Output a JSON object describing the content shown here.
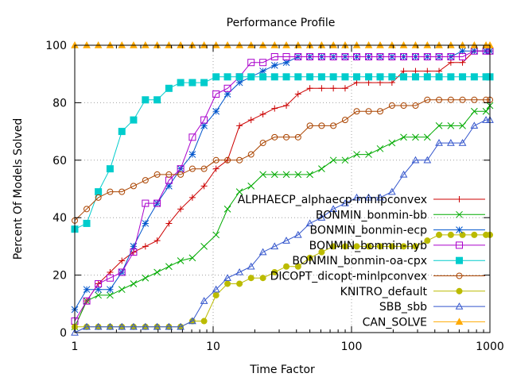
{
  "chart_data": {
    "type": "line",
    "title": "Performance Profile",
    "xlabel": "Time Factor",
    "ylabel": "Percent Of Models Solved",
    "x_scale": "log",
    "xlim": [
      1,
      1000
    ],
    "ylim": [
      0,
      100
    ],
    "xticks": [
      1,
      10,
      100,
      1000
    ],
    "yticks": [
      0,
      20,
      40,
      60,
      80,
      100
    ],
    "grid": true,
    "legend_position": "right",
    "series": [
      {
        "name": "ALPHAECP_alphaecp-minlpconvex",
        "color": "#cc0000",
        "marker": "plus",
        "x": [
          1,
          1.22,
          1.48,
          1.8,
          2.19,
          2.66,
          3.24,
          3.94,
          4.79,
          5.82,
          7.08,
          8.6,
          10.5,
          12.7,
          15.5,
          18.8,
          22.9,
          27.8,
          33.8,
          41.1,
          50,
          60.8,
          73.9,
          89.9,
          109,
          133,
          161,
          196,
          238,
          290,
          353,
          429,
          522,
          634,
          771,
          937,
          1000
        ],
        "y": [
          2,
          11,
          17,
          21,
          25,
          28,
          30,
          32,
          38,
          43,
          47,
          51,
          57,
          60,
          72,
          74,
          76,
          78,
          79,
          83,
          85,
          85,
          85,
          85,
          87,
          87,
          87,
          87,
          91,
          91,
          91,
          91,
          94,
          94,
          98,
          98,
          98
        ]
      },
      {
        "name": "BONMIN_bonmin-bb",
        "color": "#00aa00",
        "marker": "x",
        "x": [
          1,
          1.22,
          1.48,
          1.8,
          2.19,
          2.66,
          3.24,
          3.94,
          4.79,
          5.82,
          7.08,
          8.6,
          10.5,
          12.7,
          15.5,
          18.8,
          22.9,
          27.8,
          33.8,
          41.1,
          50,
          60.8,
          73.9,
          89.9,
          109,
          133,
          161,
          196,
          238,
          290,
          353,
          429,
          522,
          634,
          771,
          937,
          1000
        ],
        "y": [
          2,
          11,
          13,
          13,
          15,
          17,
          19,
          21,
          23,
          25,
          26,
          30,
          34,
          43,
          49,
          51,
          55,
          55,
          55,
          55,
          55,
          57,
          60,
          60,
          62,
          62,
          64,
          66,
          68,
          68,
          68,
          72,
          72,
          72,
          77,
          77,
          79
        ]
      },
      {
        "name": "BONMIN_bonmin-ecp",
        "color": "#0055cc",
        "marker": "star",
        "x": [
          1,
          1.22,
          1.48,
          1.8,
          2.19,
          2.66,
          3.24,
          3.94,
          4.79,
          5.82,
          7.08,
          8.6,
          10.5,
          12.7,
          15.5,
          18.8,
          22.9,
          27.8,
          33.8,
          41.1,
          50,
          60.8,
          73.9,
          89.9,
          109,
          133,
          161,
          196,
          238,
          290,
          353,
          429,
          522,
          634,
          771,
          937,
          1000
        ],
        "y": [
          8,
          15,
          15,
          15,
          21,
          30,
          38,
          45,
          51,
          57,
          62,
          72,
          77,
          83,
          87,
          89,
          91,
          93,
          94,
          96,
          96,
          96,
          96,
          96,
          96,
          96,
          96,
          96,
          96,
          96,
          96,
          96,
          96,
          98,
          98,
          98,
          98
        ]
      },
      {
        "name": "BONMIN_bonmin-hyb",
        "color": "#aa00cc",
        "marker": "square",
        "x": [
          1,
          1.22,
          1.48,
          1.8,
          2.19,
          2.66,
          3.24,
          3.94,
          4.79,
          5.82,
          7.08,
          8.6,
          10.5,
          12.7,
          15.5,
          18.8,
          22.9,
          27.8,
          33.8,
          41.1,
          50,
          60.8,
          73.9,
          89.9,
          109,
          133,
          161,
          196,
          238,
          290,
          353,
          429,
          522,
          634,
          771,
          937,
          1000
        ],
        "y": [
          4,
          11,
          17,
          19,
          21,
          28,
          45,
          45,
          53,
          57,
          68,
          74,
          83,
          85,
          89,
          94,
          94,
          96,
          96,
          96,
          96,
          96,
          96,
          96,
          96,
          96,
          96,
          96,
          96,
          96,
          96,
          96,
          96,
          96,
          98,
          98,
          98
        ]
      },
      {
        "name": "BONMIN_bonmin-oa-cpx",
        "color": "#00cccc",
        "marker": "filled-square",
        "x": [
          1,
          1.22,
          1.48,
          1.8,
          2.19,
          2.66,
          3.24,
          3.94,
          4.79,
          5.82,
          7.08,
          8.6,
          10.5,
          12.7,
          15.5,
          18.8,
          22.9,
          27.8,
          33.8,
          41.1,
          50,
          60.8,
          73.9,
          89.9,
          109,
          133,
          161,
          196,
          238,
          290,
          353,
          429,
          522,
          634,
          771,
          937,
          1000
        ],
        "y": [
          36,
          38,
          49,
          57,
          70,
          74,
          81,
          81,
          85,
          87,
          87,
          87,
          89,
          89,
          89,
          89,
          89,
          89,
          89,
          89,
          89,
          89,
          89,
          89,
          89,
          89,
          89,
          89,
          89,
          89,
          89,
          89,
          89,
          89,
          89,
          89,
          89
        ]
      },
      {
        "name": "DICOPT_dicopt-minlpconvex",
        "color": "#aa4400",
        "marker": "circle",
        "x": [
          1,
          1.22,
          1.48,
          1.8,
          2.19,
          2.66,
          3.24,
          3.94,
          4.79,
          5.82,
          7.08,
          8.6,
          10.5,
          12.7,
          15.5,
          18.8,
          22.9,
          27.8,
          33.8,
          41.1,
          50,
          60.8,
          73.9,
          89.9,
          109,
          133,
          161,
          196,
          238,
          290,
          353,
          429,
          522,
          634,
          771,
          937,
          1000
        ],
        "y": [
          39,
          43,
          47,
          49,
          49,
          51,
          53,
          55,
          55,
          55,
          57,
          57,
          60,
          60,
          60,
          62,
          66,
          68,
          68,
          68,
          72,
          72,
          72,
          74,
          77,
          77,
          77,
          79,
          79,
          79,
          81,
          81,
          81,
          81,
          81,
          81,
          81
        ]
      },
      {
        "name": "KNITRO_default",
        "color": "#bbbb00",
        "marker": "filled-circle",
        "x": [
          1,
          1.22,
          1.48,
          1.8,
          2.19,
          2.66,
          3.24,
          3.94,
          4.79,
          5.82,
          7.08,
          8.6,
          10.5,
          12.7,
          15.5,
          18.8,
          22.9,
          27.8,
          33.8,
          41.1,
          50,
          60.8,
          73.9,
          89.9,
          109,
          133,
          161,
          196,
          238,
          290,
          353,
          429,
          522,
          634,
          771,
          937,
          1000
        ],
        "y": [
          2,
          2,
          2,
          2,
          2,
          2,
          2,
          2,
          2,
          2,
          4,
          4,
          13,
          17,
          17,
          19,
          19,
          21,
          23,
          23,
          26,
          28,
          30,
          30,
          30,
          30,
          30,
          30,
          30,
          30,
          32,
          34,
          34,
          34,
          34,
          34,
          34
        ]
      },
      {
        "name": "SBB_sbb",
        "color": "#3355cc",
        "marker": "triangle",
        "x": [
          1,
          1.22,
          1.48,
          1.8,
          2.19,
          2.66,
          3.24,
          3.94,
          4.79,
          5.82,
          7.08,
          8.6,
          10.5,
          12.7,
          15.5,
          18.8,
          22.9,
          27.8,
          33.8,
          41.1,
          50,
          60.8,
          73.9,
          89.9,
          109,
          133,
          161,
          196,
          238,
          290,
          353,
          429,
          522,
          634,
          771,
          937,
          1000
        ],
        "y": [
          0,
          2,
          2,
          2,
          2,
          2,
          2,
          2,
          2,
          2,
          4,
          11,
          15,
          19,
          21,
          23,
          28,
          30,
          32,
          34,
          38,
          40,
          43,
          45,
          47,
          47,
          47,
          49,
          55,
          60,
          60,
          66,
          66,
          66,
          72,
          74,
          74
        ]
      },
      {
        "name": "CAN_SOLVE",
        "color": "#ffaa00",
        "marker": "filled-triangle",
        "x": [
          1,
          1.22,
          1.48,
          1.8,
          2.19,
          2.66,
          3.24,
          3.94,
          4.79,
          5.82,
          7.08,
          8.6,
          10.5,
          12.7,
          15.5,
          18.8,
          22.9,
          27.8,
          33.8,
          41.1,
          50,
          60.8,
          73.9,
          89.9,
          109,
          133,
          161,
          196,
          238,
          290,
          353,
          429,
          522,
          634,
          771,
          937,
          1000
        ],
        "y": [
          100,
          100,
          100,
          100,
          100,
          100,
          100,
          100,
          100,
          100,
          100,
          100,
          100,
          100,
          100,
          100,
          100,
          100,
          100,
          100,
          100,
          100,
          100,
          100,
          100,
          100,
          100,
          100,
          100,
          100,
          100,
          100,
          100,
          100,
          100,
          100,
          100
        ]
      }
    ]
  }
}
